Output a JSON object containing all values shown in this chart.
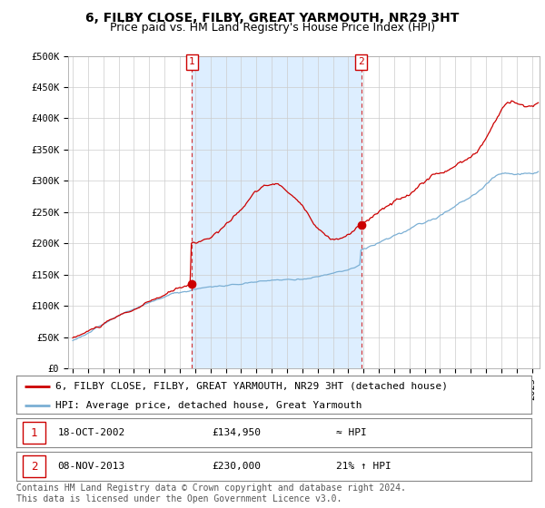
{
  "title": "6, FILBY CLOSE, FILBY, GREAT YARMOUTH, NR29 3HT",
  "subtitle": "Price paid vs. HM Land Registry's House Price Index (HPI)",
  "ylabel_ticks": [
    "£0",
    "£50K",
    "£100K",
    "£150K",
    "£200K",
    "£250K",
    "£300K",
    "£350K",
    "£400K",
    "£450K",
    "£500K"
  ],
  "ytick_values": [
    0,
    50000,
    100000,
    150000,
    200000,
    250000,
    300000,
    350000,
    400000,
    450000,
    500000
  ],
  "ylim": [
    0,
    500000
  ],
  "xlim_start": 1994.7,
  "xlim_end": 2025.5,
  "sale1_x": 2002.79,
  "sale1_y": 134950,
  "sale1_label": "1",
  "sale2_x": 2013.85,
  "sale2_y": 230000,
  "sale2_label": "2",
  "red_color": "#cc0000",
  "blue_color": "#7bafd4",
  "shade_color": "#ddeeff",
  "grid_color": "#cccccc",
  "bg_color": "#ffffff",
  "legend_line1": "6, FILBY CLOSE, FILBY, GREAT YARMOUTH, NR29 3HT (detached house)",
  "legend_line2": "HPI: Average price, detached house, Great Yarmouth",
  "table_row1": [
    "1",
    "18-OCT-2002",
    "£134,950",
    "≈ HPI"
  ],
  "table_row2": [
    "2",
    "08-NOV-2013",
    "£230,000",
    "21% ↑ HPI"
  ],
  "footnote": "Contains HM Land Registry data © Crown copyright and database right 2024.\nThis data is licensed under the Open Government Licence v3.0.",
  "title_fontsize": 10,
  "subtitle_fontsize": 9,
  "tick_fontsize": 7.5,
  "legend_fontsize": 8,
  "table_fontsize": 8,
  "footnote_fontsize": 7
}
